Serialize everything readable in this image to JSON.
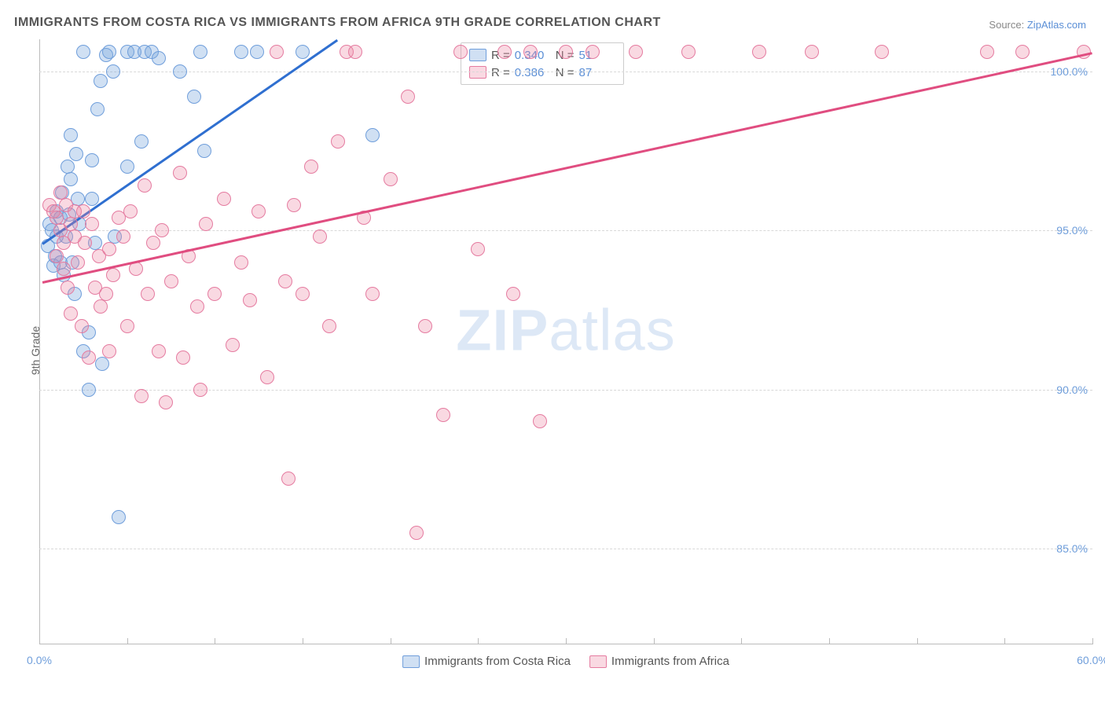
{
  "title": "IMMIGRANTS FROM COSTA RICA VS IMMIGRANTS FROM AFRICA 9TH GRADE CORRELATION CHART",
  "source_label": "Source:",
  "source_name": "ZipAtlas.com",
  "ylabel": "9th Grade",
  "watermark_a": "ZIP",
  "watermark_b": "atlas",
  "chart": {
    "type": "scatter",
    "xlim": [
      0,
      60
    ],
    "ylim": [
      82,
      101
    ],
    "xticks": [
      0,
      5,
      10,
      15,
      20,
      25,
      30,
      35,
      40,
      45,
      50,
      55,
      60
    ],
    "xtick_labels": {
      "0": "0.0%",
      "60": "60.0%"
    },
    "yticks": [
      85,
      90,
      95,
      100
    ],
    "ytick_labels": {
      "85": "85.0%",
      "90": "90.0%",
      "95": "95.0%",
      "100": "100.0%"
    },
    "grid_color": "#d8d8d8",
    "axis_color": "#bbbbbb",
    "background_color": "#ffffff",
    "point_radius": 9,
    "series": [
      {
        "name": "Immigrants from Costa Rica",
        "color_fill": "rgba(120,165,220,0.35)",
        "color_stroke": "#6f9edb",
        "R": "0.340",
        "N": "51",
        "regression": {
          "x1": 0.2,
          "y1": 94.6,
          "x2": 17.0,
          "y2": 101.0,
          "color": "#2f6fd0",
          "width": 2.5
        },
        "points": [
          [
            0.5,
            94.5
          ],
          [
            0.6,
            95.2
          ],
          [
            0.7,
            95.0
          ],
          [
            0.8,
            93.9
          ],
          [
            0.9,
            94.2
          ],
          [
            1.0,
            94.8
          ],
          [
            1.0,
            95.6
          ],
          [
            1.2,
            94.0
          ],
          [
            1.2,
            95.4
          ],
          [
            1.3,
            96.2
          ],
          [
            1.4,
            93.6
          ],
          [
            1.5,
            94.8
          ],
          [
            1.6,
            97.0
          ],
          [
            1.7,
            95.5
          ],
          [
            1.8,
            96.6
          ],
          [
            1.8,
            98.0
          ],
          [
            1.9,
            94.0
          ],
          [
            2.0,
            93.0
          ],
          [
            2.1,
            97.4
          ],
          [
            2.2,
            96.0
          ],
          [
            2.3,
            95.2
          ],
          [
            2.5,
            91.2
          ],
          [
            2.5,
            100.6
          ],
          [
            2.8,
            90.0
          ],
          [
            2.8,
            91.8
          ],
          [
            3.0,
            97.2
          ],
          [
            3.0,
            96.0
          ],
          [
            3.2,
            94.6
          ],
          [
            3.3,
            98.8
          ],
          [
            3.5,
            99.7
          ],
          [
            3.6,
            90.8
          ],
          [
            3.8,
            100.5
          ],
          [
            4.0,
            100.6
          ],
          [
            4.2,
            100.0
          ],
          [
            4.3,
            94.8
          ],
          [
            4.5,
            86.0
          ],
          [
            5.0,
            100.6
          ],
          [
            5.0,
            97.0
          ],
          [
            5.4,
            100.6
          ],
          [
            5.8,
            97.8
          ],
          [
            6.0,
            100.6
          ],
          [
            6.4,
            100.6
          ],
          [
            6.8,
            100.4
          ],
          [
            8.0,
            100.0
          ],
          [
            8.8,
            99.2
          ],
          [
            9.2,
            100.6
          ],
          [
            9.4,
            97.5
          ],
          [
            11.5,
            100.6
          ],
          [
            12.4,
            100.6
          ],
          [
            15.0,
            100.6
          ],
          [
            19.0,
            98.0
          ]
        ]
      },
      {
        "name": "Immigrants from Africa",
        "color_fill": "rgba(235,130,160,0.30)",
        "color_stroke": "#e57ba0",
        "R": "0.386",
        "N": "87",
        "regression": {
          "x1": 0.2,
          "y1": 93.4,
          "x2": 60.0,
          "y2": 100.6,
          "color": "#e04d80",
          "width": 2.5
        },
        "points": [
          [
            0.6,
            95.8
          ],
          [
            0.8,
            95.6
          ],
          [
            1.0,
            95.4
          ],
          [
            1.0,
            94.2
          ],
          [
            1.2,
            95.0
          ],
          [
            1.2,
            96.2
          ],
          [
            1.4,
            94.6
          ],
          [
            1.4,
            93.8
          ],
          [
            1.5,
            95.8
          ],
          [
            1.6,
            93.2
          ],
          [
            1.8,
            95.2
          ],
          [
            1.8,
            92.4
          ],
          [
            2.0,
            94.8
          ],
          [
            2.0,
            95.6
          ],
          [
            2.2,
            94.0
          ],
          [
            2.4,
            92.0
          ],
          [
            2.5,
            95.6
          ],
          [
            2.6,
            94.6
          ],
          [
            2.8,
            91.0
          ],
          [
            3.0,
            95.2
          ],
          [
            3.2,
            93.2
          ],
          [
            3.4,
            94.2
          ],
          [
            3.5,
            92.6
          ],
          [
            3.8,
            93.0
          ],
          [
            4.0,
            91.2
          ],
          [
            4.0,
            94.4
          ],
          [
            4.2,
            93.6
          ],
          [
            4.5,
            95.4
          ],
          [
            4.8,
            94.8
          ],
          [
            5.0,
            92.0
          ],
          [
            5.2,
            95.6
          ],
          [
            5.5,
            93.8
          ],
          [
            5.8,
            89.8
          ],
          [
            6.0,
            96.4
          ],
          [
            6.2,
            93.0
          ],
          [
            6.5,
            94.6
          ],
          [
            6.8,
            91.2
          ],
          [
            7.0,
            95.0
          ],
          [
            7.2,
            89.6
          ],
          [
            7.5,
            93.4
          ],
          [
            8.0,
            96.8
          ],
          [
            8.2,
            91.0
          ],
          [
            8.5,
            94.2
          ],
          [
            9.0,
            92.6
          ],
          [
            9.2,
            90.0
          ],
          [
            9.5,
            95.2
          ],
          [
            10.0,
            93.0
          ],
          [
            10.5,
            96.0
          ],
          [
            11.0,
            91.4
          ],
          [
            11.5,
            94.0
          ],
          [
            12.0,
            92.8
          ],
          [
            12.5,
            95.6
          ],
          [
            13.0,
            90.4
          ],
          [
            13.5,
            100.6
          ],
          [
            14.0,
            93.4
          ],
          [
            14.2,
            87.2
          ],
          [
            14.5,
            95.8
          ],
          [
            15.0,
            93.0
          ],
          [
            15.5,
            97.0
          ],
          [
            16.0,
            94.8
          ],
          [
            16.5,
            92.0
          ],
          [
            17.0,
            97.8
          ],
          [
            17.5,
            100.6
          ],
          [
            18.0,
            100.6
          ],
          [
            18.5,
            95.4
          ],
          [
            19.0,
            93.0
          ],
          [
            20.0,
            96.6
          ],
          [
            21.0,
            99.2
          ],
          [
            21.5,
            85.5
          ],
          [
            22.0,
            92.0
          ],
          [
            23.0,
            89.2
          ],
          [
            24.0,
            100.6
          ],
          [
            25.0,
            94.4
          ],
          [
            26.5,
            100.6
          ],
          [
            27.0,
            93.0
          ],
          [
            28.0,
            100.6
          ],
          [
            28.5,
            89.0
          ],
          [
            30.0,
            100.6
          ],
          [
            31.5,
            100.6
          ],
          [
            34.0,
            100.6
          ],
          [
            37.0,
            100.6
          ],
          [
            41.0,
            100.6
          ],
          [
            44.0,
            100.6
          ],
          [
            48.0,
            100.6
          ],
          [
            54.0,
            100.6
          ],
          [
            56.0,
            100.6
          ],
          [
            59.5,
            100.6
          ]
        ]
      }
    ]
  },
  "legend_top": {
    "R_label": "R =",
    "N_label": "N ="
  }
}
